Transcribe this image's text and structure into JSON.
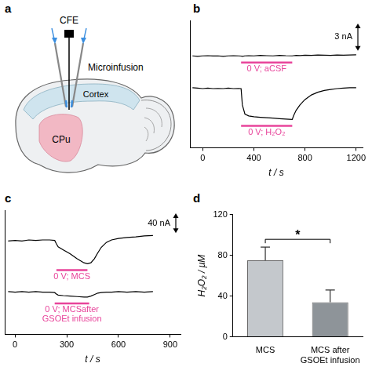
{
  "diagram": {
    "letter": "a",
    "labels": {
      "electrode": "CFE",
      "infusion": "Microinfusion",
      "cortex": "Cortex",
      "striatum": "CPu"
    }
  },
  "chart_data": [
    {
      "letter": "b",
      "type": "line",
      "x": [
        -80,
        -40,
        0,
        40,
        80,
        120,
        160,
        200,
        240,
        280,
        300,
        310,
        330,
        360,
        400,
        450,
        500,
        550,
        600,
        650,
        700,
        710,
        730,
        760,
        800,
        850,
        900,
        950,
        1000,
        1050,
        1100,
        1150,
        1200
      ],
      "series": [
        {
          "color": "#000000",
          "values": [
            3.6,
            3.55,
            3.6,
            3.62,
            3.58,
            3.6,
            3.55,
            3.6,
            3.62,
            3.6,
            3.58,
            3.55,
            3.6,
            3.62,
            3.6,
            3.65,
            3.62,
            3.6,
            3.66,
            3.62,
            3.6,
            3.62,
            3.66,
            3.64,
            3.68,
            3.66,
            3.7,
            3.68,
            3.66,
            3.7,
            3.68,
            3.7,
            3.72
          ]
        },
        {
          "color": "#000000",
          "values": [
            0.1,
            0.05,
            0,
            0.05,
            0,
            0.02,
            0,
            0.05,
            0,
            0.02,
            0,
            -1.8,
            -2.8,
            -3.0,
            -3.1,
            -3.15,
            -3.2,
            -3.25,
            -3.3,
            -3.35,
            -3.4,
            -3.0,
            -2.4,
            -1.8,
            -1.2,
            -0.7,
            -0.4,
            -0.2,
            -0.1,
            0,
            0.05,
            0.1,
            0.1
          ]
        }
      ],
      "xlim": [
        -100,
        1250
      ],
      "xticks": [
        0,
        400,
        800,
        1200
      ],
      "ylim": [
        -6.5,
        7.5
      ],
      "x_label": "t / s",
      "tick_labels": "x",
      "grid": false,
      "scale_bar": {
        "value": 3,
        "label": "3 nA"
      },
      "annotations": [
        {
          "text": "0 V; aCSF",
          "x": [
            300,
            700
          ]
        },
        {
          "text": "0 V; H₂O₂",
          "x": [
            300,
            700
          ]
        }
      ]
    },
    {
      "letter": "c",
      "type": "line",
      "x": [
        -40,
        0,
        40,
        80,
        120,
        160,
        200,
        230,
        240,
        250,
        280,
        320,
        360,
        400,
        420,
        440,
        460,
        480,
        500,
        530,
        560,
        600,
        650,
        700,
        750,
        800
      ],
      "series": [
        {
          "color": "#000000",
          "values": [
            -2,
            -1,
            -2,
            0,
            -1,
            0,
            0,
            -1,
            -8,
            -14,
            -20,
            -28,
            -38,
            -46,
            -48,
            -46,
            -38,
            -26,
            -15,
            -5,
            0,
            3,
            5,
            6,
            8,
            9
          ]
        },
        {
          "color": "#000000",
          "values": [
            -104,
            -105,
            -104,
            -105,
            -104,
            -105,
            -105,
            -106,
            -109,
            -111,
            -112,
            -113,
            -114,
            -115,
            -115,
            -113,
            -110,
            -107,
            -106,
            -105,
            -105,
            -104,
            -105,
            -104,
            -105,
            -104
          ]
        }
      ],
      "xlim": [
        -60,
        960
      ],
      "xticks": [
        0,
        300,
        600,
        900
      ],
      "ylim": [
        -190,
        60
      ],
      "x_label": "t / s",
      "tick_labels": "x",
      "grid": false,
      "scale_bar": {
        "value": 40,
        "label": "40 nA"
      },
      "annotations": [
        {
          "text": "0 V; MCS",
          "x": [
            240,
            420
          ]
        },
        {
          "text": "0 V; MCSafter GSOEt infusion",
          "x": [
            230,
            430
          ]
        }
      ]
    },
    {
      "letter": "d",
      "type": "bar",
      "categories": [
        "MCS",
        "MCS after GSOEt infusion"
      ],
      "values": [
        75,
        34
      ],
      "errors": [
        13,
        12
      ],
      "colors": [
        "#c4c8cc",
        "#8e9499"
      ],
      "ylim": [
        0,
        120
      ],
      "yticks": [
        0,
        40,
        80,
        120
      ],
      "y_label": "H₂O₂ / μM",
      "grid": false,
      "significance": [
        {
          "between": [
            0,
            1
          ],
          "label": "*"
        }
      ]
    }
  ]
}
